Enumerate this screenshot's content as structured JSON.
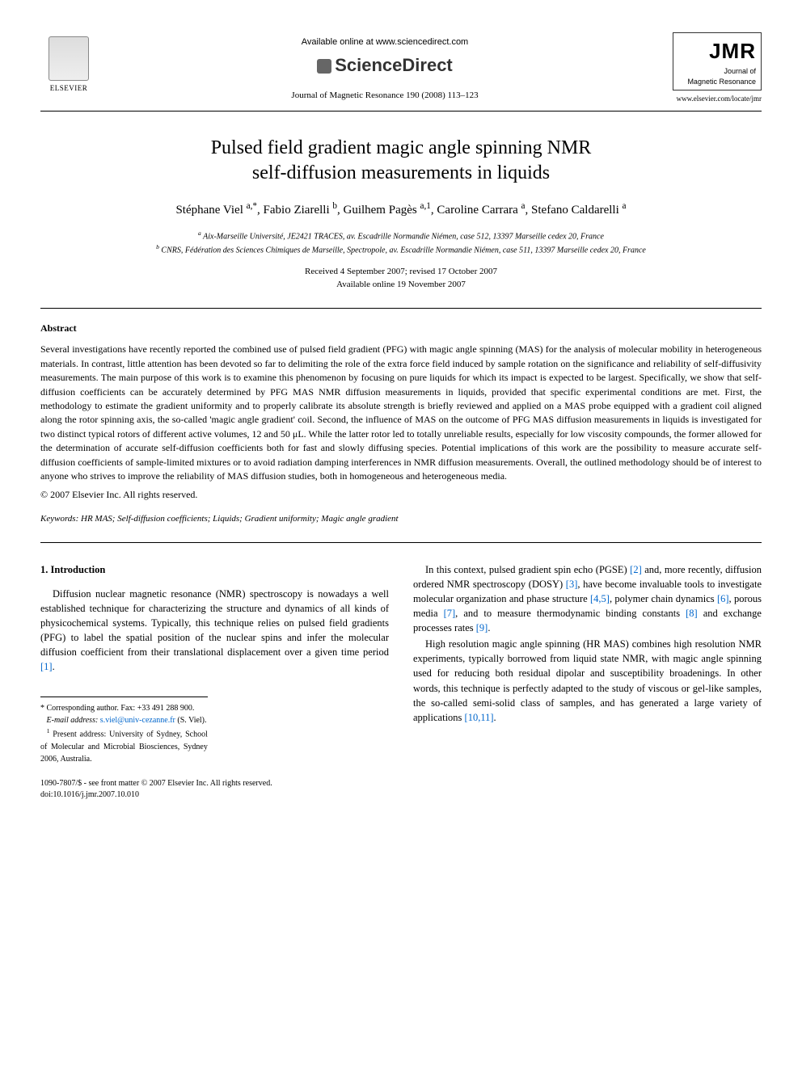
{
  "header": {
    "elsevier_label": "ELSEVIER",
    "available_online": "Available online at www.sciencedirect.com",
    "sciencedirect": "ScienceDirect",
    "journal_ref": "Journal of Magnetic Resonance 190 (2008) 113–123",
    "jmr_big": "JMR",
    "jmr_sub1": "Journal of",
    "jmr_sub2": "Magnetic Resonance",
    "jmr_url": "www.elsevier.com/locate/jmr"
  },
  "title_line1": "Pulsed field gradient magic angle spinning NMR",
  "title_line2": "self-diffusion measurements in liquids",
  "authors_html": "Stéphane Viel <sup>a,*</sup>, Fabio Ziarelli <sup>b</sup>, Guilhem Pagès <sup>a,1</sup>, Caroline Carrara <sup>a</sup>, Stefano Caldarelli <sup>a</sup>",
  "affil_a": "a Aix-Marseille Université, JE2421 TRACES, av. Escadrille Normandie Niémen, case 512, 13397 Marseille cedex 20, France",
  "affil_b": "b CNRS, Fédération des Sciences Chimiques de Marseille, Spectropole, av. Escadrille Normandie Niémen, case 511, 13397 Marseille cedex 20, France",
  "dates_line1": "Received 4 September 2007; revised 17 October 2007",
  "dates_line2": "Available online 19 November 2007",
  "abstract_head": "Abstract",
  "abstract_body": "Several investigations have recently reported the combined use of pulsed field gradient (PFG) with magic angle spinning (MAS) for the analysis of molecular mobility in heterogeneous materials. In contrast, little attention has been devoted so far to delimiting the role of the extra force field induced by sample rotation on the significance and reliability of self-diffusivity measurements. The main purpose of this work is to examine this phenomenon by focusing on pure liquids for which its impact is expected to be largest. Specifically, we show that self-diffusion coefficients can be accurately determined by PFG MAS NMR diffusion measurements in liquids, provided that specific experimental conditions are met. First, the methodology to estimate the gradient uniformity and to properly calibrate its absolute strength is briefly reviewed and applied on a MAS probe equipped with a gradient coil aligned along the rotor spinning axis, the so-called 'magic angle gradient' coil. Second, the influence of MAS on the outcome of PFG MAS diffusion measurements in liquids is investigated for two distinct typical rotors of different active volumes, 12 and 50 μL. While the latter rotor led to totally unreliable results, especially for low viscosity compounds, the former allowed for the determination of accurate self-diffusion coefficients both for fast and slowly diffusing species. Potential implications of this work are the possibility to measure accurate self-diffusion coefficients of sample-limited mixtures or to avoid radiation damping interferences in NMR diffusion measurements. Overall, the outlined methodology should be of interest to anyone who strives to improve the reliability of MAS diffusion studies, both in homogeneous and heterogeneous media.",
  "copyright": "© 2007 Elsevier Inc. All rights reserved.",
  "keywords_label": "Keywords:",
  "keywords_text": " HR MAS; Self-diffusion coefficients; Liquids; Gradient uniformity; Magic angle gradient",
  "section1_head": "1. Introduction",
  "col_left_p1": "Diffusion nuclear magnetic resonance (NMR) spectroscopy is nowadays a well established technique for characterizing the structure and dynamics of all kinds of physicochemical systems. Typically, this technique relies on pulsed field gradients (PFG) to label the spatial position of the nuclear spins and infer the molecular diffusion coefficient from their translational displacement over a given time period ",
  "ref1": "[1]",
  "col_right_p1a": "In this context, pulsed gradient spin echo (PGSE) ",
  "ref2": "[2]",
  "col_right_p1b": " and, more recently, diffusion ordered NMR spectroscopy (DOSY) ",
  "ref3": "[3]",
  "col_right_p1c": ", have become invaluable tools to investigate molecular organization and phase structure ",
  "ref45": "[4,5]",
  "col_right_p1d": ", polymer chain dynamics ",
  "ref6": "[6]",
  "col_right_p1e": ", porous media ",
  "ref7": "[7]",
  "col_right_p1f": ", and to measure thermodynamic binding constants ",
  "ref8": "[8]",
  "col_right_p1g": " and exchange processes rates ",
  "ref9": "[9]",
  "col_right_p2a": "High resolution magic angle spinning (HR MAS) combines high resolution NMR experiments, typically borrowed from liquid state NMR, with magic angle spinning used for reducing both residual dipolar and susceptibility broadenings. In other words, this technique is perfectly adapted to the study of viscous or gel-like samples, the so-called semi-solid class of samples, and has generated a large variety of applications ",
  "ref1011": "[10,11]",
  "footnote_corr": "* Corresponding author. Fax: +33 491 288 900.",
  "footnote_email_label": "E-mail address: ",
  "footnote_email": "s.viel@univ-cezanne.fr",
  "footnote_email_suffix": " (S. Viel).",
  "footnote_present": "1 Present address: University of Sydney, School of Molecular and Microbial Biosciences, Sydney 2006, Australia.",
  "bottom_issn": "1090-7807/$ - see front matter © 2007 Elsevier Inc. All rights reserved.",
  "bottom_doi": "doi:10.1016/j.jmr.2007.10.010",
  "period": "."
}
